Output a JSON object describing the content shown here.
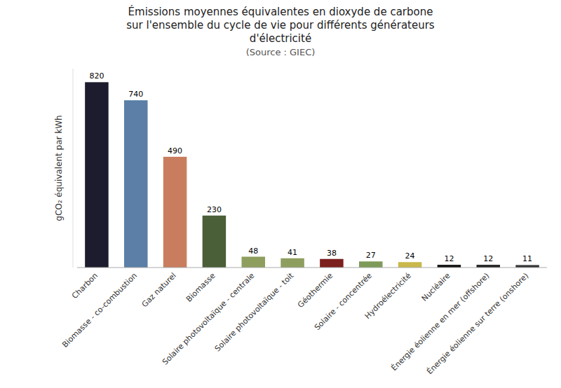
{
  "chart_data": {
    "type": "bar",
    "title": "Émissions moyennes équivalentes en dioxyde de carbone\nsur l'ensemble du cycle de vie pour différents générateurs\nd'électricité",
    "subtitle": "(Source : GIEC)",
    "ylabel": "gCO₂ équivalent par kWh",
    "categories": [
      "Charbon",
      "Biomasse - co-combustion",
      "Gaz naturel",
      "Biomasse",
      "Solaire photovoltaïque - centrale",
      "Solaire photovoltaïque - toit",
      "Géothermie",
      "Solaire - concentrée",
      "Hydroélectricité",
      "Nucléaire",
      "Énergie éolienne en mer (offshore)",
      "Énergie éolienne sur terre (onshore)"
    ],
    "values": [
      820,
      740,
      490,
      230,
      48,
      41,
      38,
      27,
      24,
      12,
      12,
      11
    ],
    "colors": [
      "#1c1c2e",
      "#5b7fa6",
      "#c97d5e",
      "#4a5e38",
      "#8e9e5e",
      "#8e9e5e",
      "#7b1f1f",
      "#7e9a5a",
      "#c9b84a",
      "#111111",
      "#222222",
      "#333333"
    ],
    "ylim": [
      0,
      880
    ],
    "data_labels": true,
    "tick_labels": "x"
  }
}
